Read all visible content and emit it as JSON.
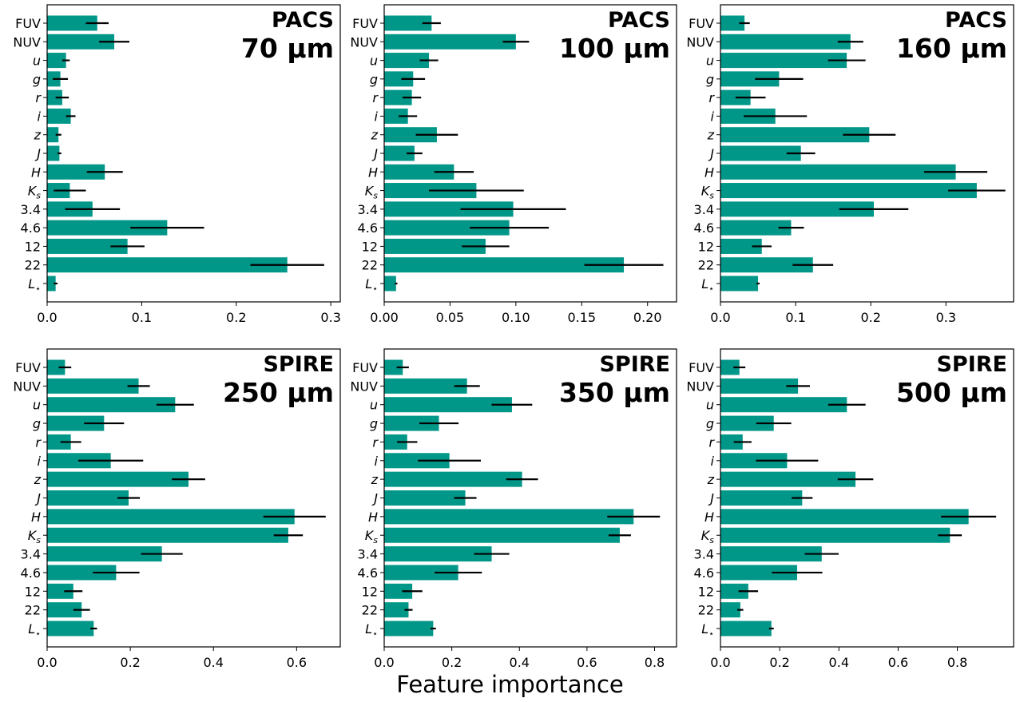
{
  "figure": {
    "xlabel": "Feature importance",
    "bar_color": "#009688",
    "error_color": "#000000"
  },
  "chart_data": [
    {
      "type": "bar",
      "orientation": "horizontal",
      "title_line1": "PACS",
      "title_line2": "70 µm",
      "categories": [
        "FUV",
        "NUV",
        "u",
        "g",
        "r",
        "i",
        "z",
        "J",
        "H",
        "K_s",
        "3.4",
        "4.6",
        "12",
        "22",
        "L_*"
      ],
      "values": [
        0.053,
        0.071,
        0.02,
        0.014,
        0.016,
        0.025,
        0.012,
        0.013,
        0.061,
        0.024,
        0.048,
        0.127,
        0.085,
        0.254,
        0.009
      ],
      "errors": [
        0.012,
        0.016,
        0.004,
        0.008,
        0.007,
        0.005,
        0.003,
        0.002,
        0.019,
        0.017,
        0.029,
        0.039,
        0.018,
        0.039,
        0.002
      ],
      "xlim": [
        0,
        0.31
      ],
      "xticks": [
        0.0,
        0.1,
        0.2,
        0.3
      ],
      "xtick_labels": [
        "0.0",
        "0.1",
        "0.2",
        "0.3"
      ]
    },
    {
      "type": "bar",
      "orientation": "horizontal",
      "title_line1": "PACS",
      "title_line2": "100 µm",
      "categories": [
        "FUV",
        "NUV",
        "u",
        "g",
        "r",
        "i",
        "z",
        "J",
        "H",
        "K_s",
        "3.4",
        "4.6",
        "12",
        "22",
        "L_*"
      ],
      "values": [
        0.036,
        0.1,
        0.034,
        0.022,
        0.021,
        0.018,
        0.04,
        0.023,
        0.053,
        0.07,
        0.098,
        0.095,
        0.077,
        0.182,
        0.009
      ],
      "errors": [
        0.007,
        0.01,
        0.007,
        0.009,
        0.007,
        0.007,
        0.016,
        0.006,
        0.015,
        0.036,
        0.04,
        0.03,
        0.018,
        0.03,
        0.001
      ],
      "xlim": [
        0,
        0.222
      ],
      "xticks": [
        0.0,
        0.05,
        0.1,
        0.15,
        0.2
      ],
      "xtick_labels": [
        "0.00",
        "0.05",
        "0.10",
        "0.15",
        "0.20"
      ]
    },
    {
      "type": "bar",
      "orientation": "horizontal",
      "title_line1": "PACS",
      "title_line2": "160 µm",
      "categories": [
        "FUV",
        "NUV",
        "u",
        "g",
        "r",
        "i",
        "z",
        "J",
        "H",
        "K_s",
        "3.4",
        "4.6",
        "12",
        "22",
        "L_*"
      ],
      "values": [
        0.032,
        0.173,
        0.168,
        0.078,
        0.04,
        0.073,
        0.198,
        0.107,
        0.313,
        0.341,
        0.204,
        0.094,
        0.055,
        0.123,
        0.05
      ],
      "errors": [
        0.007,
        0.017,
        0.025,
        0.032,
        0.02,
        0.042,
        0.035,
        0.019,
        0.042,
        0.038,
        0.046,
        0.017,
        0.013,
        0.027,
        0.002
      ],
      "xlim": [
        0,
        0.39
      ],
      "xticks": [
        0.0,
        0.1,
        0.2,
        0.3
      ],
      "xtick_labels": [
        "0.0",
        "0.1",
        "0.2",
        "0.3"
      ]
    },
    {
      "type": "bar",
      "orientation": "horizontal",
      "title_line1": "SPIRE",
      "title_line2": "250 µm",
      "categories": [
        "FUV",
        "NUV",
        "u",
        "g",
        "r",
        "i",
        "z",
        "J",
        "H",
        "K_s",
        "3.4",
        "4.6",
        "12",
        "22",
        "L_*"
      ],
      "values": [
        0.043,
        0.22,
        0.308,
        0.137,
        0.057,
        0.153,
        0.34,
        0.196,
        0.595,
        0.58,
        0.276,
        0.166,
        0.063,
        0.083,
        0.112
      ],
      "errors": [
        0.015,
        0.027,
        0.045,
        0.048,
        0.025,
        0.078,
        0.04,
        0.027,
        0.075,
        0.035,
        0.05,
        0.056,
        0.022,
        0.02,
        0.008
      ],
      "xlim": [
        0,
        0.705
      ],
      "xticks": [
        0.0,
        0.2,
        0.4,
        0.6
      ],
      "xtick_labels": [
        "0.0",
        "0.2",
        "0.4",
        "0.6"
      ]
    },
    {
      "type": "bar",
      "orientation": "horizontal",
      "title_line1": "SPIRE",
      "title_line2": "350 µm",
      "categories": [
        "FUV",
        "NUV",
        "u",
        "g",
        "r",
        "i",
        "z",
        "J",
        "H",
        "K_s",
        "3.4",
        "4.6",
        "12",
        "22",
        "L_*"
      ],
      "values": [
        0.055,
        0.245,
        0.378,
        0.162,
        0.068,
        0.193,
        0.408,
        0.24,
        0.738,
        0.697,
        0.318,
        0.219,
        0.083,
        0.072,
        0.145
      ],
      "errors": [
        0.018,
        0.038,
        0.06,
        0.058,
        0.03,
        0.093,
        0.047,
        0.033,
        0.078,
        0.033,
        0.052,
        0.07,
        0.03,
        0.012,
        0.008
      ],
      "xlim": [
        0,
        0.865
      ],
      "xticks": [
        0.0,
        0.2,
        0.4,
        0.6,
        0.8
      ],
      "xtick_labels": [
        "0.0",
        "0.2",
        "0.4",
        "0.6",
        "0.8"
      ]
    },
    {
      "type": "bar",
      "orientation": "horizontal",
      "title_line1": "SPIRE",
      "title_line2": "500 µm",
      "categories": [
        "FUV",
        "NUV",
        "u",
        "g",
        "r",
        "i",
        "z",
        "J",
        "H",
        "K_s",
        "3.4",
        "4.6",
        "12",
        "22",
        "L_*"
      ],
      "values": [
        0.064,
        0.262,
        0.427,
        0.18,
        0.075,
        0.225,
        0.456,
        0.276,
        0.838,
        0.775,
        0.342,
        0.259,
        0.094,
        0.067,
        0.172
      ],
      "errors": [
        0.02,
        0.04,
        0.063,
        0.059,
        0.03,
        0.105,
        0.06,
        0.035,
        0.093,
        0.04,
        0.057,
        0.085,
        0.033,
        0.01,
        0.008
      ],
      "xlim": [
        0,
        0.99
      ],
      "xticks": [
        0.0,
        0.2,
        0.4,
        0.6,
        0.8
      ],
      "xtick_labels": [
        "0.0",
        "0.2",
        "0.4",
        "0.6",
        "0.8"
      ]
    }
  ]
}
